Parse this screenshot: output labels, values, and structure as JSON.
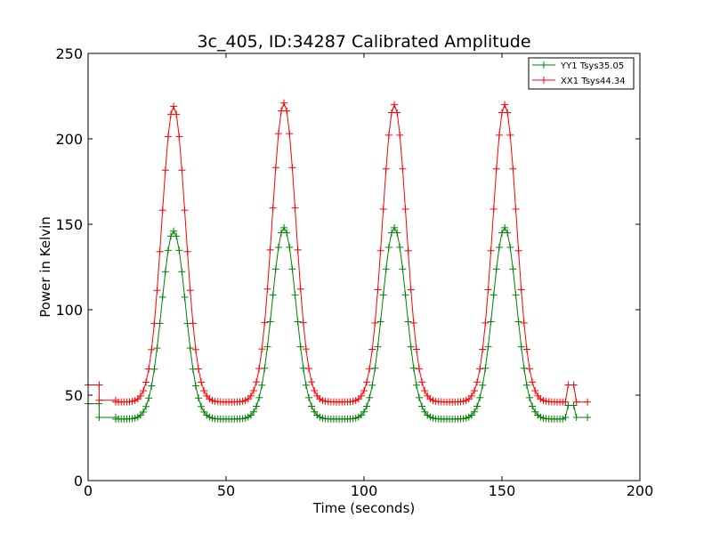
{
  "chart_data": {
    "type": "line",
    "title": "3c_405, ID:34287 Calibrated Amplitude",
    "xlabel": "Time (seconds)",
    "ylabel": "Power in Kelvin",
    "xlim": [
      0,
      200
    ],
    "ylim": [
      0,
      250
    ],
    "xticks": [
      "0",
      "50",
      "100",
      "150",
      "200"
    ],
    "yticks": [
      "0",
      "50",
      "100",
      "150",
      "200",
      "250"
    ],
    "grid": false,
    "legend_position": "top-right",
    "marker": "+",
    "series": [
      {
        "name": "YY1 Tsys35.05",
        "color": "#008000",
        "baseline": [
          0,
          45,
          4,
          45,
          4,
          37,
          10,
          37,
          10,
          36
        ],
        "peak_times": [
          31,
          71,
          111,
          151
        ],
        "peak_values": [
          146,
          148,
          148,
          148
        ],
        "tail": [
          173,
          37,
          174,
          44,
          176,
          44,
          177,
          37,
          181,
          37
        ],
        "sample_interval": 1
      },
      {
        "name": "XX1 Tsys44.34",
        "color": "#ff0000",
        "baseline": [
          0,
          56,
          4,
          56,
          4,
          47,
          10,
          47,
          10,
          46
        ],
        "peak_times": [
          31,
          71,
          111,
          151
        ],
        "peak_values": [
          219,
          221,
          220,
          220
        ],
        "tail": [
          173,
          46,
          174,
          56,
          176,
          56,
          177,
          46,
          181,
          46
        ],
        "sample_interval": 1
      }
    ]
  }
}
